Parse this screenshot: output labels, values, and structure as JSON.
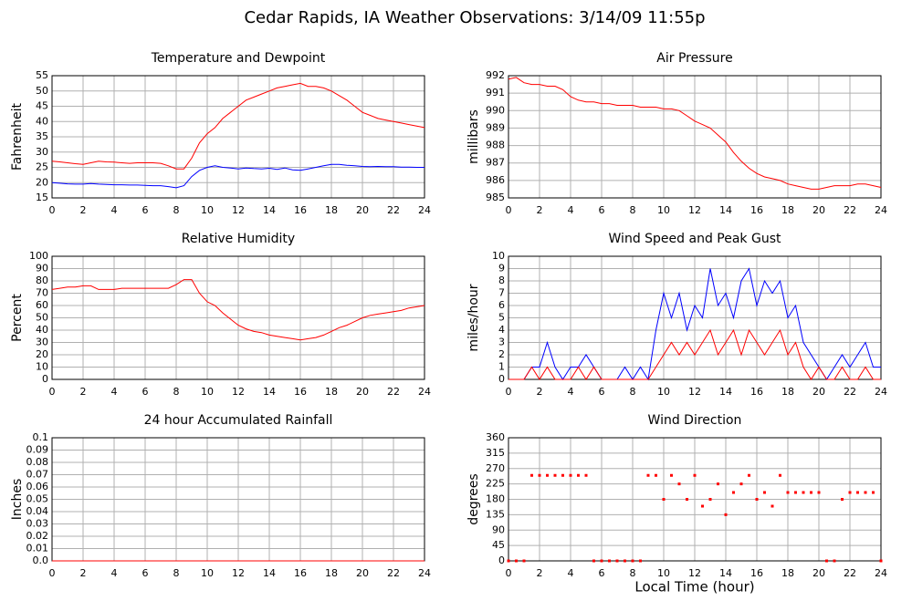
{
  "title": "Cedar Rapids, IA Weather Observations: 3/14/09 11:55p",
  "chart_data": [
    {
      "type": "line",
      "title": "Temperature and Dewpoint",
      "ylabel": "Fahrenheit",
      "xlim": [
        0,
        24
      ],
      "xticks": [
        0,
        2,
        4,
        6,
        8,
        10,
        12,
        14,
        16,
        18,
        20,
        22,
        24
      ],
      "ylim": [
        15,
        55
      ],
      "yticks": [
        15,
        20,
        25,
        30,
        35,
        40,
        45,
        50,
        55
      ],
      "grid": true,
      "x": [
        0,
        0.5,
        1,
        1.5,
        2,
        2.5,
        3,
        3.5,
        4,
        4.5,
        5,
        5.5,
        6,
        6.5,
        7,
        7.5,
        8,
        8.5,
        9,
        9.5,
        10,
        10.5,
        11,
        11.5,
        12,
        12.5,
        13,
        13.5,
        14,
        14.5,
        15,
        15.5,
        16,
        16.5,
        17,
        17.5,
        18,
        18.5,
        19,
        19.5,
        20,
        20.5,
        21,
        21.5,
        22,
        22.5,
        23,
        23.5,
        24
      ],
      "series": [
        {
          "color": "#ff0000",
          "values": [
            27,
            26.8,
            26.5,
            26.2,
            26,
            26.5,
            27,
            26.8,
            26.7,
            26.5,
            26.3,
            26.5,
            26.5,
            26.5,
            26.3,
            25.5,
            24.5,
            24.5,
            28,
            33,
            36,
            38,
            41,
            43,
            45,
            47,
            48,
            49,
            50,
            51,
            51.5,
            52,
            52.5,
            51.5,
            51.5,
            51,
            50,
            48.5,
            47,
            45,
            43,
            42,
            41,
            40.5,
            40,
            39.5,
            39,
            38.5,
            38
          ]
        },
        {
          "color": "#0000ff",
          "values": [
            20,
            19.8,
            19.6,
            19.5,
            19.5,
            19.7,
            19.5,
            19.4,
            19.3,
            19.3,
            19.2,
            19.2,
            19.1,
            19,
            19,
            18.7,
            18.3,
            19,
            22,
            24,
            25,
            25.5,
            25,
            24.8,
            24.5,
            24.8,
            24.6,
            24.5,
            24.7,
            24.3,
            24.8,
            24.2,
            24,
            24.5,
            25,
            25.5,
            26,
            26,
            25.7,
            25.5,
            25.3,
            25.2,
            25.3,
            25.2,
            25.2,
            25.1,
            25.1,
            25,
            25
          ]
        }
      ]
    },
    {
      "type": "line",
      "title": "Air Pressure",
      "ylabel": "millibars",
      "xlim": [
        0,
        24
      ],
      "xticks": [
        0,
        2,
        4,
        6,
        8,
        10,
        12,
        14,
        16,
        18,
        20,
        22,
        24
      ],
      "ylim": [
        985,
        992
      ],
      "yticks": [
        985,
        986,
        987,
        988,
        989,
        990,
        991,
        992
      ],
      "grid": true,
      "x": [
        0,
        0.5,
        1,
        1.5,
        2,
        2.5,
        3,
        3.5,
        4,
        4.5,
        5,
        5.5,
        6,
        6.5,
        7,
        7.5,
        8,
        8.5,
        9,
        9.5,
        10,
        10.5,
        11,
        11.5,
        12,
        12.5,
        13,
        13.5,
        14,
        14.5,
        15,
        15.5,
        16,
        16.5,
        17,
        17.5,
        18,
        18.5,
        19,
        19.5,
        20,
        20.5,
        21,
        21.5,
        22,
        22.5,
        23,
        23.5,
        24
      ],
      "series": [
        {
          "color": "#ff0000",
          "values": [
            991.8,
            991.9,
            991.6,
            991.5,
            991.5,
            991.4,
            991.4,
            991.2,
            990.8,
            990.6,
            990.5,
            990.5,
            990.4,
            990.4,
            990.3,
            990.3,
            990.3,
            990.2,
            990.2,
            990.2,
            990.1,
            990.1,
            990,
            989.7,
            989.4,
            989.2,
            989,
            988.6,
            988.2,
            987.6,
            987.1,
            986.7,
            986.4,
            986.2,
            986.1,
            986,
            985.8,
            985.7,
            985.6,
            985.5,
            985.5,
            985.6,
            985.7,
            985.7,
            985.7,
            985.8,
            985.8,
            985.7,
            985.6
          ]
        }
      ]
    },
    {
      "type": "line",
      "title": "Relative Humidity",
      "ylabel": "Percent",
      "xlim": [
        0,
        24
      ],
      "xticks": [
        0,
        2,
        4,
        6,
        8,
        10,
        12,
        14,
        16,
        18,
        20,
        22,
        24
      ],
      "ylim": [
        0,
        100
      ],
      "yticks": [
        0,
        10,
        20,
        30,
        40,
        50,
        60,
        70,
        80,
        90,
        100
      ],
      "grid": true,
      "x": [
        0,
        0.5,
        1,
        1.5,
        2,
        2.5,
        3,
        3.5,
        4,
        4.5,
        5,
        5.5,
        6,
        6.5,
        7,
        7.5,
        8,
        8.5,
        9,
        9.5,
        10,
        10.5,
        11,
        11.5,
        12,
        12.5,
        13,
        13.5,
        14,
        14.5,
        15,
        15.5,
        16,
        16.5,
        17,
        17.5,
        18,
        18.5,
        19,
        19.5,
        20,
        20.5,
        21,
        21.5,
        22,
        22.5,
        23,
        23.5,
        24
      ],
      "series": [
        {
          "color": "#ff0000",
          "values": [
            73,
            74,
            75,
            75,
            76,
            76,
            73,
            73,
            73,
            74,
            74,
            74,
            74,
            74,
            74,
            74,
            77,
            81,
            81,
            70,
            63,
            60,
            54,
            49,
            44,
            41,
            39,
            38,
            36,
            35,
            34,
            33,
            32,
            33,
            34,
            36,
            39,
            42,
            44,
            47,
            50,
            52,
            53,
            54,
            55,
            56,
            58,
            59,
            60
          ]
        }
      ]
    },
    {
      "type": "line",
      "title": "Wind Speed and Peak Gust",
      "ylabel": "miles/hour",
      "xlim": [
        0,
        24
      ],
      "xticks": [
        0,
        2,
        4,
        6,
        8,
        10,
        12,
        14,
        16,
        18,
        20,
        22,
        24
      ],
      "ylim": [
        0,
        10
      ],
      "yticks": [
        0,
        1,
        2,
        3,
        4,
        5,
        6,
        7,
        8,
        9,
        10
      ],
      "grid": true,
      "x": [
        0,
        0.5,
        1,
        1.5,
        2,
        2.5,
        3,
        3.5,
        4,
        4.5,
        5,
        5.5,
        6,
        6.5,
        7,
        7.5,
        8,
        8.5,
        9,
        9.5,
        10,
        10.5,
        11,
        11.5,
        12,
        12.5,
        13,
        13.5,
        14,
        14.5,
        15,
        15.5,
        16,
        16.5,
        17,
        17.5,
        18,
        18.5,
        19,
        19.5,
        20,
        20.5,
        21,
        21.5,
        22,
        22.5,
        23,
        23.5,
        24
      ],
      "series": [
        {
          "color": "#0000ff",
          "values": [
            0,
            0,
            0,
            1,
            1,
            3,
            1,
            0,
            1,
            1,
            2,
            1,
            0,
            0,
            0,
            1,
            0,
            1,
            0,
            4,
            7,
            5,
            7,
            4,
            6,
            5,
            9,
            6,
            7,
            5,
            8,
            9,
            6,
            8,
            7,
            8,
            5,
            6,
            3,
            2,
            1,
            0,
            1,
            2,
            1,
            2,
            3,
            1,
            1
          ]
        },
        {
          "color": "#ff0000",
          "values": [
            0,
            0,
            0,
            1,
            0,
            1,
            0,
            0,
            0,
            1,
            0,
            1,
            0,
            0,
            0,
            0,
            0,
            0,
            0,
            1,
            2,
            3,
            2,
            3,
            2,
            3,
            4,
            2,
            3,
            4,
            2,
            4,
            3,
            2,
            3,
            4,
            2,
            3,
            1,
            0,
            1,
            0,
            0,
            1,
            0,
            0,
            1,
            0,
            0
          ]
        }
      ]
    },
    {
      "type": "line",
      "title": "24 hour Accumulated Rainfall",
      "ylabel": "Inches",
      "xlim": [
        0,
        24
      ],
      "xticks": [
        0,
        2,
        4,
        6,
        8,
        10,
        12,
        14,
        16,
        18,
        20,
        22,
        24
      ],
      "ylim": [
        0,
        0.1
      ],
      "yticks": [
        {
          "value": 0,
          "label": "0.0"
        },
        0.01,
        0.02,
        0.03,
        0.04,
        0.05,
        0.06,
        0.07,
        0.08,
        0.09,
        0.1
      ],
      "grid": true,
      "x": [
        0,
        24
      ],
      "series": [
        {
          "color": "#ff0000",
          "values": [
            0,
            0
          ]
        }
      ]
    },
    {
      "type": "scatter",
      "title": "Wind Direction",
      "ylabel": "degrees",
      "xlabel": "Local Time (hour)",
      "xlim": [
        0,
        24
      ],
      "xticks": [
        0,
        2,
        4,
        6,
        8,
        10,
        12,
        14,
        16,
        18,
        20,
        22,
        24
      ],
      "ylim": [
        0,
        360
      ],
      "yticks": [
        0,
        45,
        90,
        135,
        180,
        225,
        270,
        315,
        360
      ],
      "grid": true,
      "x": [
        0,
        0.5,
        1,
        1.5,
        2,
        2.5,
        3,
        3.5,
        4,
        4.5,
        5,
        5.5,
        6,
        6.5,
        7,
        7.5,
        8,
        8.5,
        9,
        9.5,
        10,
        10.5,
        11,
        11.5,
        12,
        12.5,
        13,
        13.5,
        14,
        14.5,
        15,
        15.5,
        16,
        16.5,
        17,
        17.5,
        18,
        18.5,
        19,
        19.5,
        20,
        20.5,
        21,
        21.5,
        22,
        22.5,
        23,
        23.5,
        24
      ],
      "series": [
        {
          "color": "#ff0000",
          "values": [
            0,
            0,
            0,
            250,
            250,
            250,
            250,
            250,
            250,
            250,
            250,
            0,
            0,
            0,
            0,
            0,
            0,
            0,
            250,
            250,
            180,
            250,
            225,
            180,
            250,
            160,
            180,
            225,
            135,
            200,
            225,
            250,
            180,
            200,
            160,
            250,
            200,
            200,
            200,
            200,
            200,
            0,
            0,
            180,
            200,
            200,
            200,
            200,
            0
          ]
        }
      ]
    }
  ]
}
